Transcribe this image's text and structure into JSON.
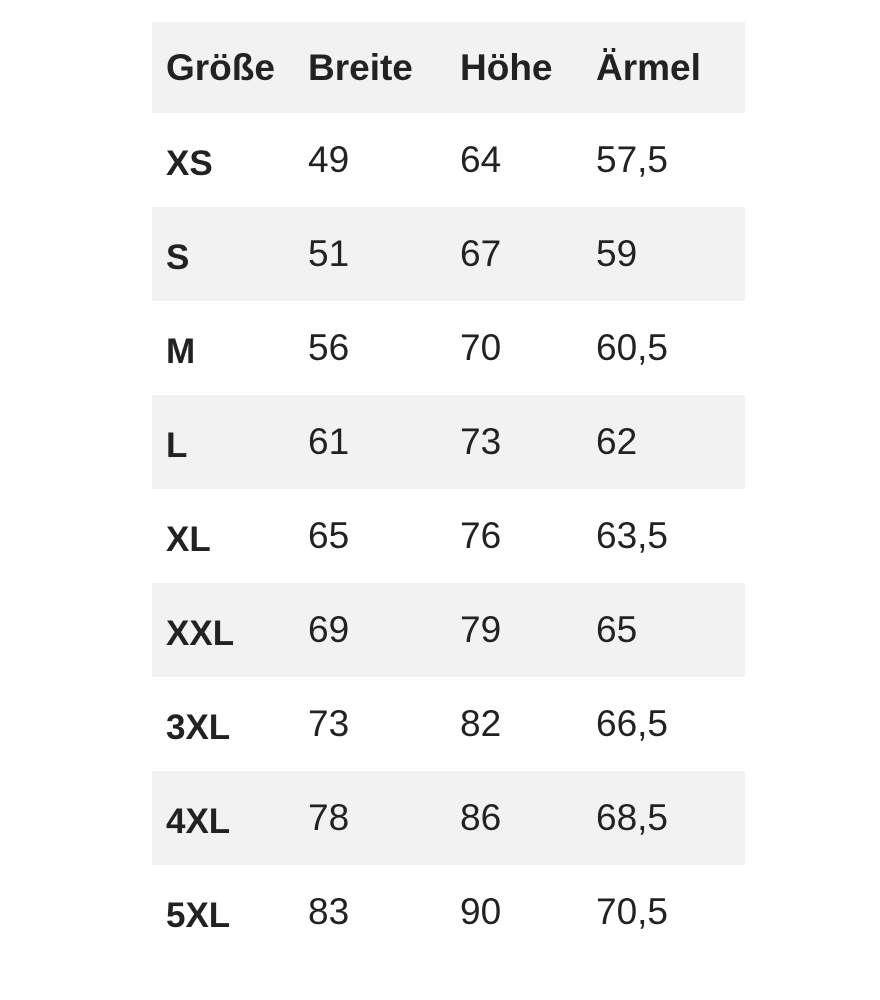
{
  "table": {
    "headers": [
      "Größe",
      "Breite",
      "Höhe",
      "Ärmel"
    ],
    "rows": [
      [
        "XS",
        "49",
        "64",
        "57,5"
      ],
      [
        "S",
        "51",
        "67",
        "59"
      ],
      [
        "M",
        "56",
        "70",
        "60,5"
      ],
      [
        "L",
        "61",
        "73",
        "62"
      ],
      [
        "XL",
        "65",
        "76",
        "63,5"
      ],
      [
        "XXL",
        "69",
        "79",
        "65"
      ],
      [
        "3XL",
        "73",
        "82",
        "66,5"
      ],
      [
        "4XL",
        "78",
        "86",
        "68,5"
      ],
      [
        "5XL",
        "83",
        "90",
        "70,5"
      ]
    ]
  },
  "colors": {
    "stripe": "#f2f2f2",
    "text": "#222222"
  }
}
